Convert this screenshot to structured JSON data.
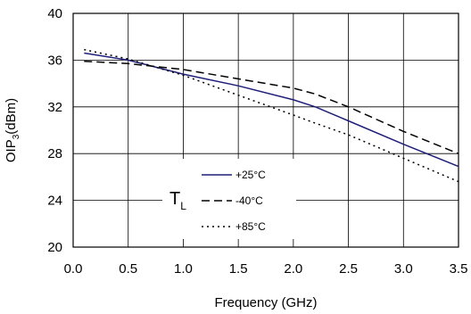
{
  "chart_data": {
    "type": "line",
    "title": "",
    "xlabel": "Frequency (GHz)",
    "ylabel": "OIP3(dBm)",
    "ylabel_main": "OIP",
    "ylabel_sub": "3",
    "ylabel_rest": "(dBm)",
    "xlim": [
      0.0,
      3.5
    ],
    "ylim": [
      20,
      40
    ],
    "xticks": [
      "0.0",
      "0.5",
      "1.0",
      "1.5",
      "2.0",
      "2.5",
      "3.0",
      "3.5"
    ],
    "yticks": [
      "20",
      "24",
      "28",
      "32",
      "36",
      "40"
    ],
    "grid": true,
    "legend": {
      "placement": "lower-center",
      "title": "T",
      "title_sub": "L"
    },
    "series": [
      {
        "name": "+25°C",
        "color": "#1f1f7a",
        "style": "solid",
        "x": [
          0.1,
          0.5,
          1.0,
          1.5,
          2.0,
          2.2,
          2.5,
          3.0,
          3.5
        ],
        "y": [
          36.6,
          36.0,
          34.8,
          33.8,
          32.6,
          32.0,
          30.8,
          28.8,
          26.9
        ]
      },
      {
        "name": "-40°C",
        "color": "#000000",
        "style": "dashed",
        "x": [
          0.1,
          0.5,
          1.0,
          1.5,
          2.0,
          2.2,
          2.5,
          3.0,
          3.5
        ],
        "y": [
          35.9,
          35.7,
          35.2,
          34.4,
          33.6,
          33.1,
          32.0,
          29.9,
          28.0
        ]
      },
      {
        "name": "+85°C",
        "color": "#000000",
        "style": "dotted",
        "x": [
          0.1,
          0.5,
          1.0,
          1.5,
          2.0,
          2.2,
          2.5,
          3.0,
          3.5
        ],
        "y": [
          36.9,
          36.1,
          34.7,
          33.0,
          31.3,
          30.6,
          29.6,
          27.6,
          25.6
        ]
      }
    ]
  }
}
